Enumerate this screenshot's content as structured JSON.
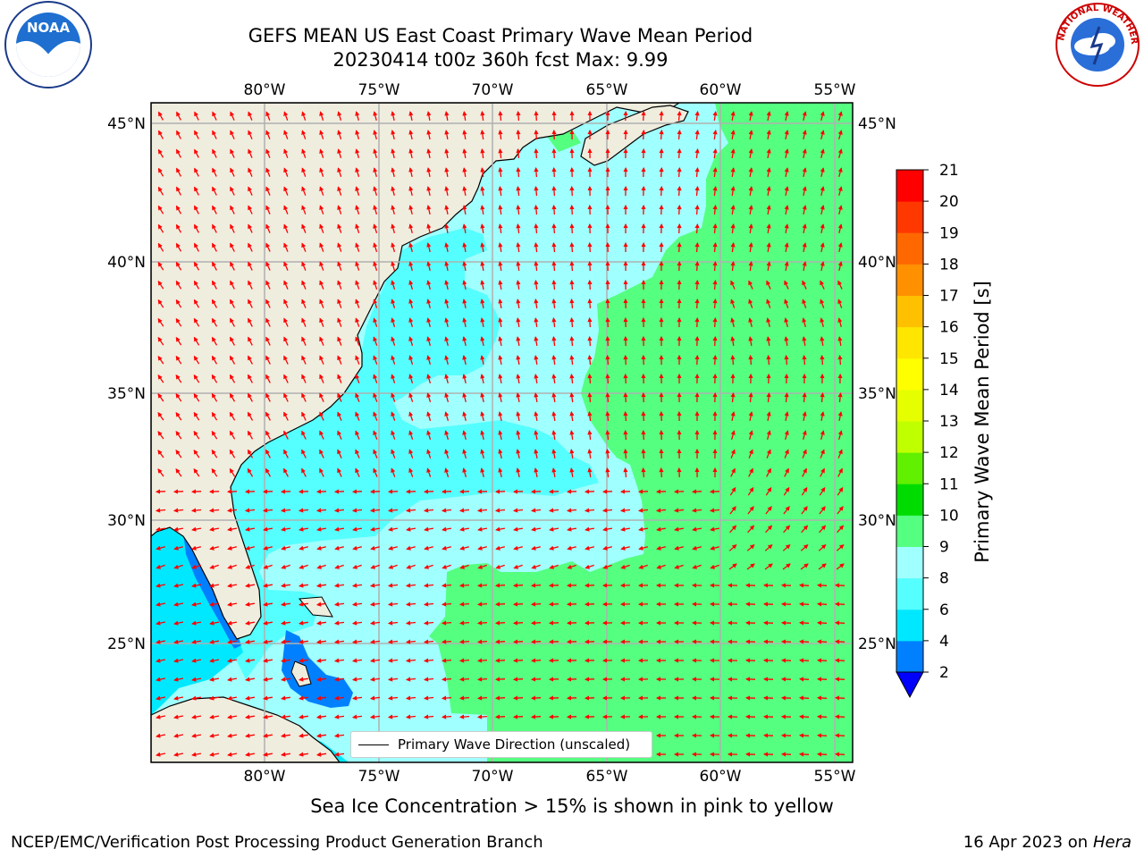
{
  "title_line1": "GEFS MEAN US East Coast Primary Wave Mean Period",
  "title_line2": "20230414 t00z 360h fcst   Max: 9.99",
  "lon_labels": [
    "80°W",
    "75°W",
    "70°W",
    "65°W",
    "60°W",
    "55°W"
  ],
  "lat_labels": [
    "45°N",
    "40°N",
    "35°N",
    "30°N",
    "25°N"
  ],
  "colorbar": {
    "title": "Primary Wave Mean Period [s]",
    "ticks": [
      "2",
      "4",
      "6",
      "8",
      "9",
      "10",
      "11",
      "12",
      "13",
      "14",
      "15",
      "16",
      "17",
      "18",
      "19",
      "20",
      "21"
    ],
    "colors": [
      "#0080ff",
      "#00e8ff",
      "#55ffff",
      "#a0ffff",
      "#55ff80",
      "#00dc00",
      "#60f000",
      "#c0ff00",
      "#e6ff00",
      "#ffff00",
      "#ffe600",
      "#ffc000",
      "#ff9000",
      "#ff6800",
      "#ff3800",
      "#ff0000"
    ],
    "under_color": "#0000ff"
  },
  "legend_label": "Primary Wave Direction (unscaled)",
  "footer_center": "Sea Ice Concentration > 15% is shown in pink to yellow",
  "footer_left": "NCEP/EMC/Verification Post Processing Product Generation Branch",
  "footer_right_date": "16 Apr 2023 on ",
  "footer_right_machine": "Hera",
  "logos": {
    "left": "NOAA",
    "right": "NATIONAL WEATHER SERVICE"
  },
  "colors": {
    "land": "#efedde",
    "coast": "#000000",
    "grid": "#b0b0b0",
    "arrow": "#ff0000"
  }
}
